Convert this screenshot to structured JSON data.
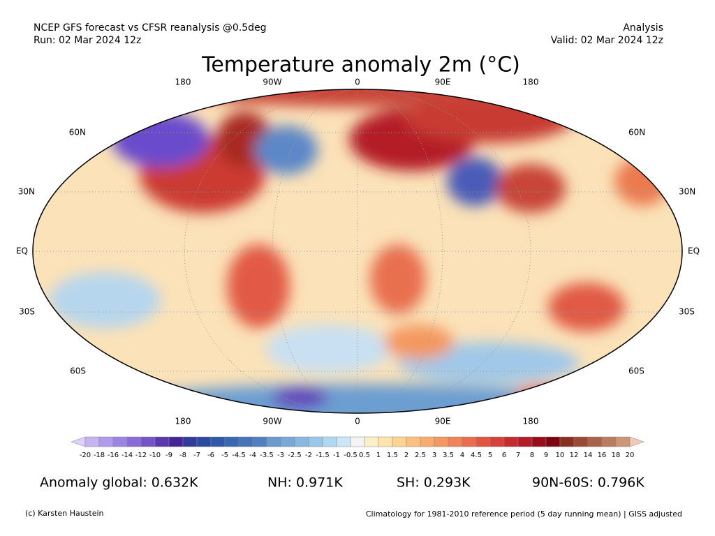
{
  "header": {
    "left_line1": "NCEP GFS forecast vs CFSR reanalysis @0.5deg",
    "left_line2": "Run: 02 Mar 2024 12z",
    "right_line1": "Analysis",
    "right_line2": "Valid: 02 Mar 2024 12z",
    "title": "Temperature anomaly 2m (°C)"
  },
  "map": {
    "top_labels": [
      "180",
      "90W",
      "0",
      "90E",
      "180"
    ],
    "bottom_labels": [
      "180",
      "90W",
      "0",
      "90E",
      "180"
    ],
    "left_labels": [
      "60N",
      "30N",
      "EQ",
      "30S",
      "60S"
    ],
    "right_labels": [
      "60N",
      "30N",
      "EQ",
      "30S",
      "60S"
    ]
  },
  "colorbar": {
    "labels": [
      "-20",
      "-18",
      "-16",
      "-14",
      "-12",
      "-10",
      "-9",
      "-8",
      "-7",
      "-6",
      "-5",
      "-4.5",
      "-4",
      "-3.5",
      "-3",
      "-2.5",
      "-2",
      "-1.5",
      "-1",
      "-0.5",
      "0.5",
      "1",
      "1.5",
      "2",
      "2.5",
      "3",
      "3.5",
      "4",
      "4.5",
      "5",
      "6",
      "7",
      "8",
      "9",
      "10",
      "12",
      "14",
      "16",
      "18",
      "20"
    ],
    "colors": [
      "#ddd0fa",
      "#c4b4f2",
      "#b09cec",
      "#9c84e4",
      "#8a6cd8",
      "#7454c8",
      "#5c38b0",
      "#442694",
      "#303c98",
      "#2c4aa0",
      "#3058a8",
      "#3868b0",
      "#4474b8",
      "#5080c0",
      "#6a9ad0",
      "#78a8d8",
      "#88b8e0",
      "#98c8e8",
      "#b0d8f0",
      "#cce6f6",
      "#f4f4f4",
      "#fbefc8",
      "#fde4a8",
      "#fcd490",
      "#fbc07c",
      "#f8ac6c",
      "#f49860",
      "#f08458",
      "#ea6c4c",
      "#e05642",
      "#d4403a",
      "#c42c30",
      "#b01c28",
      "#980c1c",
      "#7c0410",
      "#8a3020",
      "#9a4a34",
      "#aa6248",
      "#bc7c60",
      "#cc9678",
      "#f4c8b4"
    ]
  },
  "stats": [
    "Anomaly global: 0.632K",
    "NH: 0.971K",
    "SH: 0.293K",
    "90N-60S: 0.796K"
  ],
  "footer": {
    "left": "(c) Karsten Haustein",
    "right": "Climatology for 1981-2010 reference period (5 day running mean) | GISS adjusted"
  }
}
